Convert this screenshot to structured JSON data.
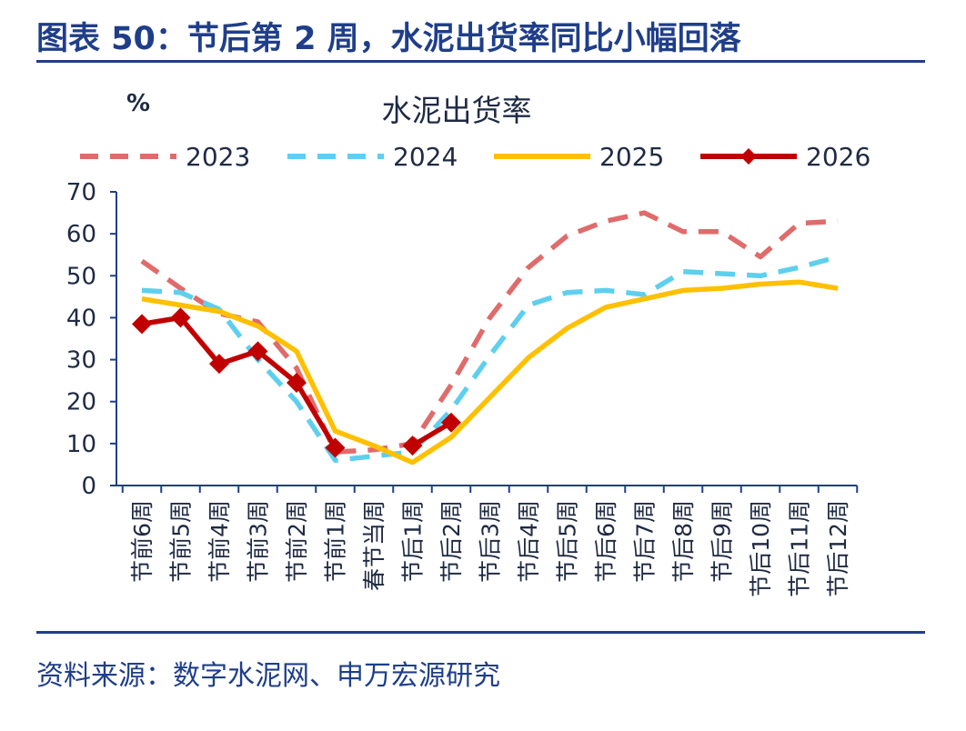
{
  "figure": {
    "title": "图表 50：节后第 2 周，水泥出货率同比小幅回落",
    "source": "资料来源：数字水泥网、申万宏源研究"
  },
  "chart_data": {
    "type": "line",
    "title": "水泥出货率",
    "ylabel": "%",
    "xlabel": "",
    "ylim": [
      0,
      70
    ],
    "yticks": [
      0,
      10,
      20,
      30,
      40,
      50,
      60,
      70
    ],
    "grid": false,
    "legend_position": "top",
    "categories": [
      "节前6周",
      "节前5周",
      "节前4周",
      "节前3周",
      "节前2周",
      "节前1周",
      "春节当周",
      "节后1周",
      "节后2周",
      "节后3周",
      "节后4周",
      "节后5周",
      "节后6周",
      "节后7周",
      "节后8周",
      "节后9周",
      "节后10周",
      "节后11周",
      "节后12周"
    ],
    "series": [
      {
        "name": "2023",
        "color": "#e06b6b",
        "style": "dashed",
        "marker": "none",
        "values": [
          53.5,
          47,
          41,
          39,
          28,
          8,
          8.5,
          10,
          24,
          40,
          52,
          59.5,
          63,
          65,
          60.5,
          60.5,
          54.5,
          62.5,
          63
        ]
      },
      {
        "name": "2024",
        "color": "#5ecfee",
        "style": "dashed",
        "marker": "none",
        "values": [
          46.5,
          46,
          42,
          30,
          20,
          6,
          7,
          8,
          18,
          31,
          43,
          46,
          46.5,
          45.5,
          51,
          50.5,
          50,
          52,
          54.5
        ]
      },
      {
        "name": "2025",
        "color": "#ffc000",
        "style": "solid",
        "marker": "none",
        "values": [
          44.5,
          43,
          41.5,
          38,
          32,
          13,
          9.5,
          5.5,
          11.5,
          21,
          30.5,
          37.5,
          42.5,
          44.5,
          46.5,
          47,
          48,
          48.5,
          47
        ]
      },
      {
        "name": "2026",
        "color": "#c00000",
        "style": "solid",
        "marker": "diamond",
        "values": [
          38.5,
          40,
          29,
          32,
          24.5,
          9,
          null,
          9.5,
          15,
          null,
          null,
          null,
          null,
          null,
          null,
          null,
          null,
          null,
          null
        ]
      }
    ]
  }
}
